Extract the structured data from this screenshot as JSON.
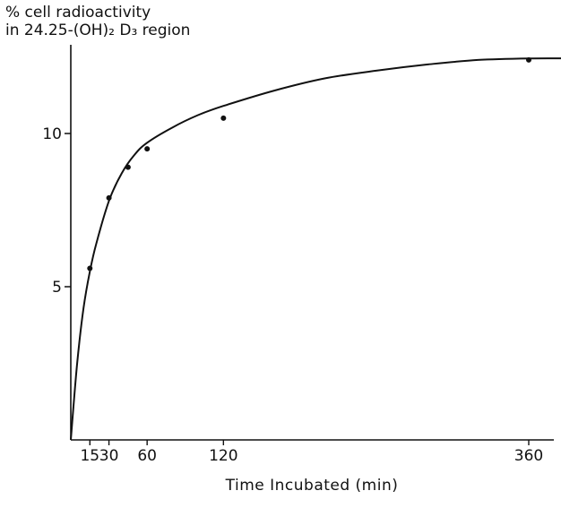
{
  "chart_data": {
    "type": "line",
    "title": "",
    "ylabel_lines": [
      "% cell radioactivity",
      "in 24.25-(OH)₂ D₃ region"
    ],
    "xlabel": "Time Incubated (min)",
    "xlim": [
      0,
      400
    ],
    "ylim": [
      0,
      13
    ],
    "x_ticks": [
      15,
      30,
      60,
      120,
      360
    ],
    "x_tick_labels": [
      "15",
      "30",
      "60",
      "120",
      "360"
    ],
    "y_ticks": [
      5,
      10
    ],
    "y_tick_labels": [
      "5",
      "10"
    ],
    "grid": false,
    "legend": "none",
    "series": [
      {
        "kind": "points",
        "x": [
          15,
          30,
          45,
          60,
          120,
          360
        ],
        "y": [
          5.6,
          7.9,
          8.9,
          9.5,
          10.5,
          12.4
        ]
      },
      {
        "kind": "fitted-curve",
        "x": [
          0,
          5,
          10,
          15,
          20,
          30,
          40,
          50,
          60,
          80,
          100,
          120,
          160,
          200,
          240,
          280,
          320,
          360,
          400
        ],
        "y": [
          0,
          2.5,
          4.3,
          5.5,
          6.4,
          7.8,
          8.7,
          9.3,
          9.7,
          10.2,
          10.6,
          10.9,
          11.4,
          11.8,
          12.05,
          12.25,
          12.4,
          12.45,
          12.45
        ]
      }
    ],
    "colors": {
      "ink": "#111111",
      "background": "#ffffff"
    }
  }
}
